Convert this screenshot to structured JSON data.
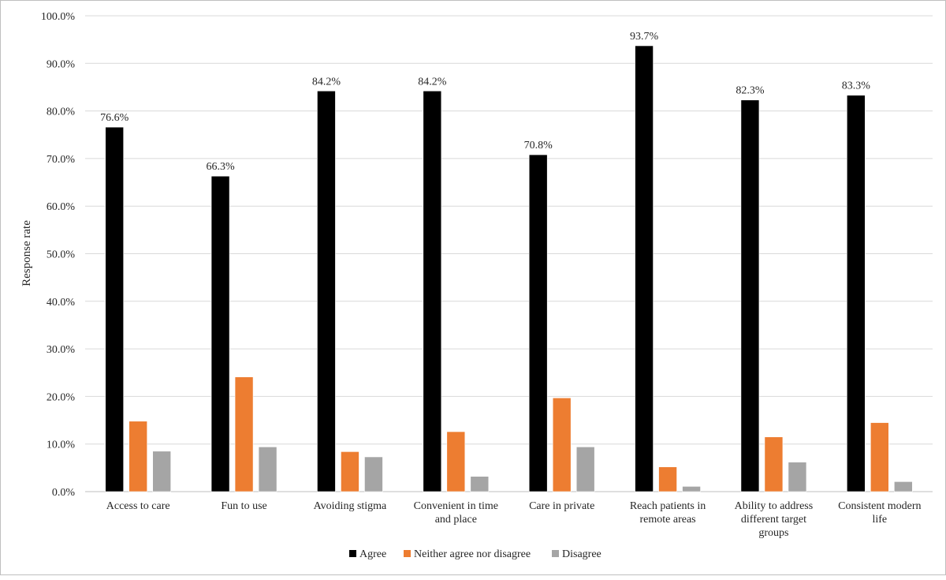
{
  "chart_data": {
    "type": "bar",
    "ylabel": "Response rate",
    "ylim": [
      0,
      100
    ],
    "ytick_step": 10,
    "ytick_labels": [
      "0.0%",
      "10.0%",
      "20.0%",
      "30.0%",
      "40.0%",
      "50.0%",
      "60.0%",
      "70.0%",
      "80.0%",
      "90.0%",
      "100.0%"
    ],
    "grid": "horizontal",
    "legend": "bottom",
    "categories": [
      [
        "Access to care"
      ],
      [
        "Fun to use"
      ],
      [
        "Avoiding stigma"
      ],
      [
        "Convenient in time",
        "and place"
      ],
      [
        "Care in private"
      ],
      [
        "Reach patients in",
        "remote areas"
      ],
      [
        "Ability to address",
        "different target",
        "groups"
      ],
      [
        "Consistent modern",
        "life"
      ]
    ],
    "series": [
      {
        "name": "Agree",
        "color": "#000000",
        "values": [
          76.6,
          66.3,
          84.2,
          84.2,
          70.8,
          93.7,
          82.3,
          83.3
        ],
        "labels": [
          "76.6%",
          "66.3%",
          "84.2%",
          "84.2%",
          "70.8%",
          "93.7%",
          "82.3%",
          "83.3%"
        ]
      },
      {
        "name": "Neither agree nor disagree",
        "color": "#ed7d31",
        "values": [
          14.8,
          24.1,
          8.4,
          12.6,
          19.7,
          5.2,
          11.5,
          14.5
        ]
      },
      {
        "name": "Disagree",
        "color": "#a5a5a5",
        "values": [
          8.5,
          9.4,
          7.3,
          3.2,
          9.4,
          1.1,
          6.2,
          2.1
        ]
      }
    ]
  }
}
